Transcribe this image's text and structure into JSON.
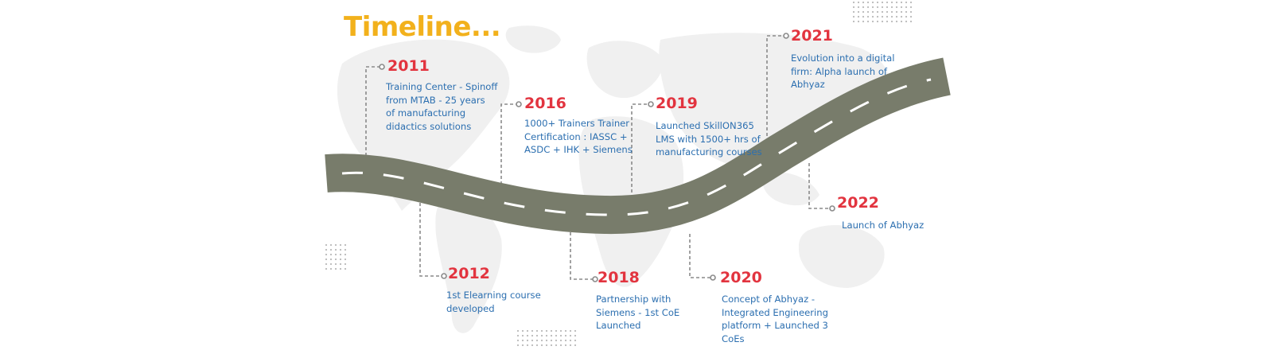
{
  "title": "Timeline...",
  "colors": {
    "title": "#f2b11c",
    "year": "#e2343f",
    "description": "#2c6fb0",
    "road": "#787c6b",
    "road_dash": "#ffffff",
    "connector": "#8a8a8a",
    "map": "#f0f0f0"
  },
  "milestones": [
    {
      "year": "2011",
      "lines": [
        "Training Center - Spinoff",
        "from MTAB - 25 years",
        "of  manufacturing",
        "didactics solutions"
      ]
    },
    {
      "year": "2012",
      "lines": [
        "1st Elearning course",
        "developed"
      ]
    },
    {
      "year": "2016",
      "lines": [
        "1000+ Trainers Trainer",
        "Certification : IASSC +",
        "ASDC + IHK + Siemens"
      ]
    },
    {
      "year": "2018",
      "lines": [
        "Partnership with",
        "Siemens - 1st CoE",
        "Launched"
      ]
    },
    {
      "year": "2019",
      "lines": [
        "Launched SkillON365",
        "LMS with 1500+ hrs of",
        "manufacturing courses"
      ]
    },
    {
      "year": "2020",
      "lines": [
        "Concept of Abhyaz -",
        "Integrated Engineering",
        "platform  + Launched 3",
        "CoEs"
      ]
    },
    {
      "year": "2021",
      "lines": [
        "Evolution into a digital",
        "firm: Alpha launch of",
        "Abhyaz"
      ]
    },
    {
      "year": "2022",
      "lines": [
        "Launch of Abhyaz"
      ]
    }
  ]
}
